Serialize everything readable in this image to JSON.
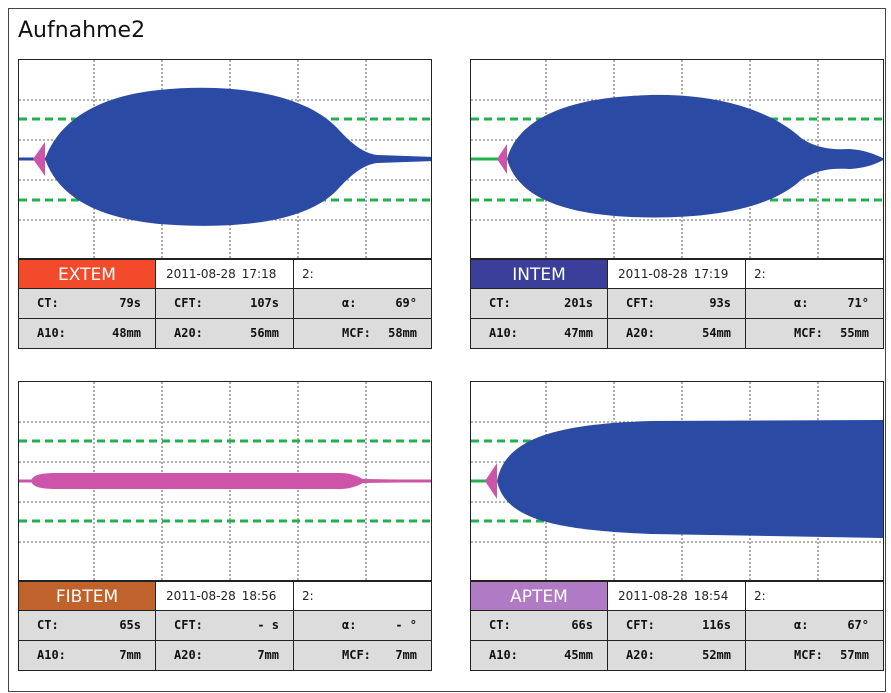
{
  "title": "Aufnahme2",
  "colors": {
    "blue_trace": "#2a4aa3",
    "pink_trace": "#cc55aa",
    "green_dash": "#22b14c"
  },
  "panels": [
    {
      "id": "extem",
      "name": "EXTEM",
      "color": "#f24a2b",
      "date": "2011-08-28",
      "time": "17:18",
      "channel": "2:",
      "trace_color": "#2a4aa3",
      "r1": [
        {
          "label": "CT:",
          "value": "79s"
        },
        {
          "label": "CFT:",
          "value": "107s"
        },
        {
          "label": "α:",
          "value": "69°"
        }
      ],
      "r2": [
        {
          "label": "A10:",
          "value": "48mm"
        },
        {
          "label": "A20:",
          "value": "56mm"
        },
        {
          "label": "MCF:",
          "value": "58mm"
        }
      ]
    },
    {
      "id": "intem",
      "name": "INTEM",
      "color": "#3b3f9a",
      "date": "2011-08-28",
      "time": "17:19",
      "channel": "2:",
      "trace_color": "#2a4aa3",
      "r1": [
        {
          "label": "CT:",
          "value": "201s"
        },
        {
          "label": "CFT:",
          "value": "93s"
        },
        {
          "label": "α:",
          "value": "71°"
        }
      ],
      "r2": [
        {
          "label": "A10:",
          "value": "47mm"
        },
        {
          "label": "A20:",
          "value": "54mm"
        },
        {
          "label": "MCF:",
          "value": "55mm"
        }
      ]
    },
    {
      "id": "fibtem",
      "name": "FIBTEM",
      "color": "#c0622b",
      "date": "2011-08-28",
      "time": "18:56",
      "channel": "2:",
      "trace_color": "#cc55aa",
      "r1": [
        {
          "label": "CT:",
          "value": "65s"
        },
        {
          "label": "CFT:",
          "value": "- s"
        },
        {
          "label": "α:",
          "value": "- °"
        }
      ],
      "r2": [
        {
          "label": "A10:",
          "value": "7mm"
        },
        {
          "label": "A20:",
          "value": "7mm"
        },
        {
          "label": "MCF:",
          "value": "7mm"
        }
      ]
    },
    {
      "id": "aptem",
      "name": "APTEM",
      "color": "#b07ac4",
      "date": "2011-08-28",
      "time": "18:54",
      "channel": "2:",
      "trace_color": "#2a4aa3",
      "r1": [
        {
          "label": "CT:",
          "value": "66s"
        },
        {
          "label": "CFT:",
          "value": "116s"
        },
        {
          "label": "α:",
          "value": "67°"
        }
      ],
      "r2": [
        {
          "label": "A10:",
          "value": "45mm"
        },
        {
          "label": "A20:",
          "value": "52mm"
        },
        {
          "label": "MCF:",
          "value": "57mm"
        }
      ]
    }
  ]
}
